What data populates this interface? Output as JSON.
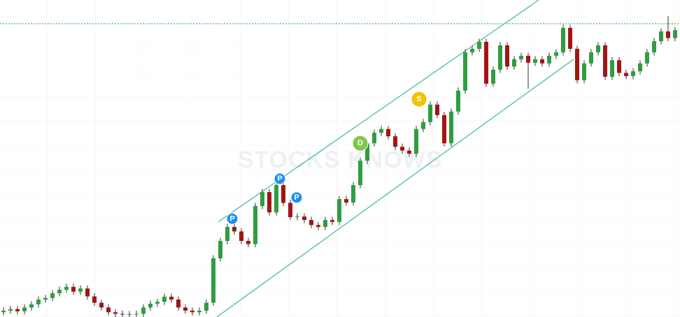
{
  "chart_data": {
    "type": "candlestick",
    "watermark": "STOCKS KNOWS",
    "xlim": [
      -0.5,
      96.7
    ],
    "ylim": [
      0,
      100
    ],
    "up_color": "#2e9e3e",
    "down_color": "#a31515",
    "open": [
      1.5,
      2,
      2.5,
      1.8,
      3,
      4,
      5.5,
      6,
      7.5,
      8.6,
      9.5,
      8,
      9,
      6.5,
      4.5,
      3,
      1.5,
      1,
      0.8,
      0.9,
      1,
      3,
      4.2,
      4.8,
      6.4,
      5.5,
      3,
      2,
      1.5,
      2,
      4.5,
      18.5,
      24,
      28.4,
      27,
      24,
      23,
      35,
      39.4,
      33,
      41.6,
      36,
      31.5,
      31.7,
      30.6,
      29,
      28.4,
      30.6,
      30,
      37.2,
      36.1,
      41.6,
      49.3,
      54.8,
      58.1,
      59.3,
      57,
      53.7,
      52.5,
      51.5,
      59.3,
      61.5,
      67,
      63.7,
      54.8,
      64.8,
      71.4,
      83.5,
      84.6,
      86.8,
      73.6,
      78,
      85.7,
      79,
      81.3,
      82.4,
      80.2,
      81.3,
      80,
      82.4,
      83.5,
      91.2,
      84.6,
      74.7,
      80,
      83.5,
      85.7,
      75.8,
      81,
      77,
      76,
      77.5,
      80,
      83.5,
      87,
      90.1,
      88
    ],
    "high": [
      3,
      3.5,
      3.5,
      4,
      5,
      6.5,
      7,
      8.5,
      9.6,
      10.5,
      10.5,
      10,
      10,
      7.5,
      5.5,
      4,
      2.5,
      2,
      1.9,
      2,
      4,
      5.2,
      5.8,
      7.4,
      7.4,
      6.5,
      4,
      3,
      3,
      5.5,
      19.5,
      25,
      29.4,
      29.4,
      28,
      25,
      36,
      40.4,
      40.4,
      42.6,
      42.6,
      37,
      32.7,
      32.7,
      31.6,
      30,
      31.6,
      31.6,
      38.2,
      38.2,
      42.6,
      50.3,
      55.8,
      59.1,
      60.3,
      60.3,
      58,
      54.7,
      53.5,
      60.3,
      62.5,
      68,
      68,
      64.7,
      65.8,
      72.4,
      84.5,
      85.6,
      87.8,
      87.8,
      79,
      86.7,
      86.7,
      82.3,
      83.4,
      83.4,
      82.3,
      82.3,
      83.4,
      84.5,
      92.2,
      92.2,
      85.6,
      81,
      84.5,
      86.7,
      86.7,
      82,
      82,
      78,
      78.5,
      81,
      84.5,
      88,
      91.1,
      95,
      91.5
    ],
    "low": [
      0.5,
      1,
      0.8,
      0.8,
      2,
      3,
      4.5,
      5,
      6.5,
      7.6,
      7,
      7,
      5.5,
      3.5,
      2,
      0.5,
      0,
      0,
      0,
      0,
      0,
      2,
      3.2,
      3.8,
      4.5,
      2,
      1,
      0.5,
      0.5,
      1,
      3.5,
      17.5,
      23,
      26,
      23,
      22,
      22,
      34,
      32,
      32,
      35,
      30.5,
      30.5,
      29.6,
      28,
      27.4,
      27.4,
      29,
      29,
      35.1,
      35.1,
      40.6,
      48.3,
      53.8,
      57.1,
      56,
      52.7,
      51.5,
      50.5,
      50.5,
      58.3,
      60.5,
      62.7,
      53.8,
      53.8,
      63.8,
      70.4,
      82.5,
      83.6,
      72.6,
      72.6,
      77,
      78,
      78,
      80.3,
      72,
      79.2,
      79,
      79,
      81.4,
      82.5,
      83.6,
      73.7,
      73.7,
      79,
      82.5,
      74.8,
      74.8,
      76,
      75,
      75,
      76.5,
      79,
      82.5,
      86,
      87,
      87
    ],
    "close": [
      2,
      2.5,
      1.8,
      3,
      4,
      5.5,
      6,
      7.5,
      8.6,
      9.5,
      8,
      9,
      6.5,
      4.5,
      3,
      1.5,
      1,
      0.8,
      0.9,
      1,
      3,
      4.2,
      4.8,
      6.4,
      5.5,
      3,
      2,
      1.5,
      2,
      4.5,
      18.5,
      24,
      28.4,
      27,
      24,
      23,
      35,
      39.4,
      33,
      41.6,
      36,
      31.5,
      31.7,
      30.6,
      29,
      28.4,
      30.6,
      30,
      37.2,
      36.1,
      41.6,
      49.3,
      54.8,
      58.1,
      59.3,
      57,
      53.7,
      52.5,
      51.5,
      59.3,
      61.5,
      67,
      63.7,
      54.8,
      64.8,
      71.4,
      83.5,
      84.6,
      86.8,
      73.6,
      78,
      85.7,
      79,
      81.3,
      82.4,
      80.2,
      81.3,
      80,
      82.4,
      83.5,
      91.2,
      84.6,
      74.7,
      80,
      83.5,
      85.7,
      75.8,
      81,
      77,
      76,
      77.5,
      80,
      83.5,
      87,
      90.1,
      88,
      90.5
    ],
    "reference_line": {
      "y": 92.5,
      "color": "#2eaa2e"
    },
    "trendlines": [
      {
        "x": [
          30.7,
          76.5
        ],
        "y": [
          30,
          100
        ],
        "color": "#3cb89a"
      },
      {
        "x": [
          30.5,
          81.5
        ],
        "y": [
          0,
          81.3
        ],
        "color": "#3cb89a"
      }
    ],
    "events": [
      {
        "label": "P",
        "x": 32.7,
        "y": 31,
        "color": "#1e90f0"
      },
      {
        "label": "P",
        "x": 39.5,
        "y": 43.6,
        "color": "#1e90f0"
      },
      {
        "label": "P",
        "x": 41.9,
        "y": 37.7,
        "color": "#1e90f0"
      },
      {
        "label": "D",
        "x": 51,
        "y": 54.8,
        "color": "#7cc84a"
      },
      {
        "label": "S",
        "x": 59.4,
        "y": 68.7,
        "color": "#f2c200"
      }
    ]
  }
}
